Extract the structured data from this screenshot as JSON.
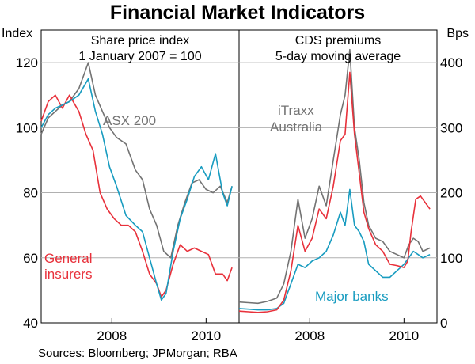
{
  "title": "Financial Market Indicators",
  "source": "Sources: Bloomberg; JPMorgan; RBA",
  "colors": {
    "grey": "#737373",
    "red": "#e8313b",
    "blue": "#189cc0",
    "grid": "#b0b0b0"
  },
  "chart_data": [
    {
      "type": "line",
      "title": "Share price index",
      "subtitle": "1 January 2007 = 100",
      "ylabel": "Index",
      "ylim": [
        40,
        130
      ],
      "yticks": [
        40,
        60,
        80,
        100,
        120
      ],
      "xlim": [
        2006.5,
        2010.7
      ],
      "xticks": [
        {
          "value": 2008,
          "label": "2008"
        },
        {
          "value": 2010,
          "label": "2010"
        }
      ],
      "series": [
        {
          "name": "ASX 200",
          "color": "grey",
          "x": [
            2006.5,
            2006.65,
            2006.8,
            2006.95,
            2007.1,
            2007.3,
            2007.5,
            2007.65,
            2007.8,
            2007.95,
            2008.1,
            2008.3,
            2008.5,
            2008.65,
            2008.8,
            2008.95,
            2009.1,
            2009.25,
            2009.4,
            2009.55,
            2009.7,
            2009.85,
            2010.0,
            2010.15,
            2010.3,
            2010.45,
            2010.55
          ],
          "y": [
            98,
            103,
            105,
            107,
            108,
            112,
            120,
            110,
            105,
            100,
            97,
            95,
            87,
            84,
            75,
            70,
            62,
            60,
            70,
            77,
            83,
            84,
            81,
            80,
            82,
            77,
            82
          ]
        },
        {
          "name": "General insurers",
          "color": "red",
          "x": [
            2006.5,
            2006.65,
            2006.8,
            2006.95,
            2007.1,
            2007.3,
            2007.45,
            2007.6,
            2007.75,
            2007.9,
            2008.05,
            2008.2,
            2008.35,
            2008.5,
            2008.65,
            2008.8,
            2008.95,
            2009.05,
            2009.15,
            2009.3,
            2009.45,
            2009.6,
            2009.75,
            2009.9,
            2010.05,
            2010.2,
            2010.35,
            2010.45,
            2010.55
          ],
          "y": [
            102,
            108,
            110,
            106,
            110,
            105,
            98,
            93,
            80,
            75,
            72,
            70,
            70,
            68,
            62,
            55,
            52,
            48,
            50,
            58,
            64,
            62,
            63,
            62,
            61,
            55,
            55,
            53,
            57
          ]
        },
        {
          "name": "Major banks",
          "color": "blue",
          "x": [
            2006.5,
            2006.65,
            2006.8,
            2006.95,
            2007.1,
            2007.3,
            2007.5,
            2007.65,
            2007.8,
            2007.95,
            2008.1,
            2008.3,
            2008.5,
            2008.65,
            2008.8,
            2008.95,
            2009.05,
            2009.15,
            2009.3,
            2009.45,
            2009.6,
            2009.75,
            2009.9,
            2010.05,
            2010.2,
            2010.35,
            2010.45,
            2010.55
          ],
          "y": [
            100,
            104,
            106,
            107,
            108,
            110,
            115,
            105,
            98,
            88,
            82,
            73,
            70,
            68,
            60,
            52,
            47,
            49,
            62,
            72,
            78,
            85,
            88,
            84,
            92,
            80,
            76,
            82
          ]
        }
      ],
      "annotations": [
        {
          "text": "ASX 200",
          "color": "grey"
        },
        {
          "text": "General",
          "color": "red"
        },
        {
          "text": "insurers",
          "color": "red"
        }
      ]
    },
    {
      "type": "line",
      "title": "CDS premiums",
      "subtitle": "5-day moving average",
      "ylabel": "Bps",
      "ylim": [
        0,
        450
      ],
      "yticks": [
        0,
        100,
        200,
        300,
        400
      ],
      "xlim": [
        2006.5,
        2010.7
      ],
      "xticks": [
        {
          "value": 2008,
          "label": "2008"
        },
        {
          "value": 2010,
          "label": "2010"
        }
      ],
      "series": [
        {
          "name": "iTraxx Australia",
          "color": "grey",
          "x": [
            2006.5,
            2006.7,
            2006.9,
            2007.1,
            2007.3,
            2007.45,
            2007.6,
            2007.75,
            2007.9,
            2008.05,
            2008.2,
            2008.35,
            2008.5,
            2008.65,
            2008.75,
            2008.85,
            2008.95,
            2009.05,
            2009.15,
            2009.25,
            2009.4,
            2009.55,
            2009.7,
            2009.85,
            2010.0,
            2010.1,
            2010.2,
            2010.3,
            2010.4,
            2010.55
          ],
          "y": [
            32,
            31,
            30,
            33,
            38,
            60,
            110,
            190,
            130,
            160,
            210,
            180,
            250,
            320,
            350,
            420,
            300,
            250,
            185,
            150,
            130,
            125,
            110,
            105,
            100,
            120,
            130,
            125,
            110,
            115
          ]
        },
        {
          "name": "Major banks",
          "color": "blue",
          "x": [
            2006.5,
            2006.7,
            2006.9,
            2007.1,
            2007.3,
            2007.45,
            2007.6,
            2007.75,
            2007.9,
            2008.05,
            2008.2,
            2008.35,
            2008.5,
            2008.65,
            2008.75,
            2008.85,
            2008.95,
            2009.05,
            2009.15,
            2009.25,
            2009.4,
            2009.55,
            2009.7,
            2009.85,
            2010.0,
            2010.1,
            2010.2,
            2010.3,
            2010.4,
            2010.55
          ],
          "y": [
            22,
            21,
            20,
            20,
            22,
            30,
            60,
            90,
            85,
            95,
            100,
            110,
            135,
            170,
            150,
            205,
            150,
            140,
            125,
            90,
            80,
            70,
            70,
            80,
            90,
            100,
            110,
            105,
            100,
            105
          ]
        },
        {
          "name": "General insurers",
          "color": "red",
          "x": [
            2006.5,
            2006.7,
            2006.9,
            2007.1,
            2007.3,
            2007.45,
            2007.6,
            2007.75,
            2007.9,
            2008.05,
            2008.2,
            2008.35,
            2008.5,
            2008.65,
            2008.75,
            2008.85,
            2008.95,
            2009.05,
            2009.15,
            2009.25,
            2009.4,
            2009.55,
            2009.7,
            2009.85,
            2010.0,
            2010.08,
            2010.15,
            2010.25,
            2010.35,
            2010.45,
            2010.55
          ],
          "y": [
            18,
            17,
            16,
            17,
            20,
            35,
            80,
            150,
            110,
            130,
            175,
            160,
            210,
            280,
            290,
            385,
            290,
            230,
            170,
            145,
            120,
            110,
            90,
            88,
            85,
            95,
            140,
            190,
            195,
            185,
            175
          ]
        }
      ],
      "annotations": [
        {
          "text": "iTraxx",
          "color": "grey"
        },
        {
          "text": "Australia",
          "color": "grey"
        },
        {
          "text": "Major banks",
          "color": "blue"
        }
      ]
    }
  ]
}
